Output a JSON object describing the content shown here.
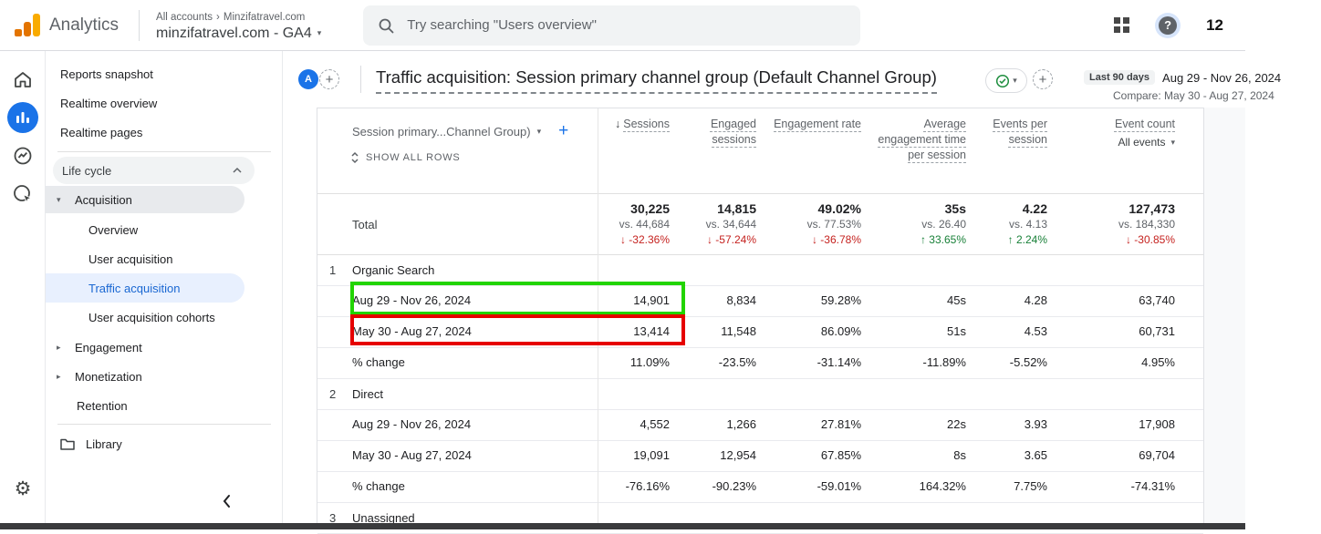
{
  "app_header": {
    "product_name": "Analytics",
    "breadcrumb": {
      "root": "All accounts",
      "separator": "›",
      "account": "Minzifatravel.com"
    },
    "property_selector": "minzifatravel.com - GA4",
    "search_placeholder": "Try searching \"Users overview\"",
    "help_glyph": "?",
    "counter": "12"
  },
  "sidebar": {
    "items": [
      {
        "type": "item",
        "label": "Reports snapshot"
      },
      {
        "type": "item",
        "label": "Realtime overview"
      },
      {
        "type": "item",
        "label": "Realtime pages"
      },
      {
        "type": "divider"
      },
      {
        "type": "section",
        "label": "Life cycle"
      },
      {
        "type": "parent",
        "label": "Acquisition",
        "state": "expanded"
      },
      {
        "type": "child",
        "label": "Overview"
      },
      {
        "type": "child",
        "label": "User acquisition"
      },
      {
        "type": "child",
        "label": "Traffic acquisition",
        "selected": true
      },
      {
        "type": "child",
        "label": "User acquisition cohorts"
      },
      {
        "type": "parent",
        "label": "Engagement",
        "state": "collapsed"
      },
      {
        "type": "parent",
        "label": "Monetization",
        "state": "collapsed"
      },
      {
        "type": "parent",
        "label": "Retention",
        "state": "none"
      },
      {
        "type": "divider"
      },
      {
        "type": "library",
        "label": "Library"
      }
    ]
  },
  "report_header": {
    "avatar_letter": "A",
    "title": "Traffic acquisition: Session primary channel group (Default Channel Group)",
    "date_badge": "Last 90 days",
    "date_range": "Aug 29 - Nov 26, 2024",
    "compare_range": "Compare: May 30 - Aug 27, 2024"
  },
  "table": {
    "dimension_header": "Session primary...Channel Group)",
    "add_dimension": "+",
    "show_all_rows": "SHOW ALL ROWS",
    "columns": [
      {
        "label": "Sessions",
        "sorted": true
      },
      {
        "label": "Engaged sessions"
      },
      {
        "label": "Engagement rate"
      },
      {
        "label": "Average engagement time per session"
      },
      {
        "label": "Events per session"
      },
      {
        "label": "Event count",
        "filter": "All events"
      }
    ],
    "total": {
      "label": "Total",
      "metrics": [
        {
          "value": "30,225",
          "vs": "vs. 44,684",
          "change": "-32.36%",
          "dir": "down"
        },
        {
          "value": "14,815",
          "vs": "vs. 34,644",
          "change": "-57.24%",
          "dir": "down"
        },
        {
          "value": "49.02%",
          "vs": "vs. 77.53%",
          "change": "-36.78%",
          "dir": "down"
        },
        {
          "value": "35s",
          "vs": "vs. 26.40",
          "change": "33.65%",
          "dir": "up"
        },
        {
          "value": "4.22",
          "vs": "vs. 4.13",
          "change": "2.24%",
          "dir": "up"
        },
        {
          "value": "127,473",
          "vs": "vs. 184,330",
          "change": "-30.85%",
          "dir": "down"
        }
      ]
    },
    "groups": [
      {
        "index": "1",
        "channel": "Organic Search",
        "rows": [
          {
            "label": "Aug 29 - Nov 26, 2024",
            "values": [
              "14,901",
              "8,834",
              "59.28%",
              "45s",
              "4.28",
              "63,740"
            ]
          },
          {
            "label": "May 30 - Aug 27, 2024",
            "values": [
              "13,414",
              "11,548",
              "86.09%",
              "51s",
              "4.53",
              "60,731"
            ]
          },
          {
            "label": "% change",
            "values": [
              "11.09%",
              "-23.5%",
              "-31.14%",
              "-11.89%",
              "-5.52%",
              "4.95%"
            ]
          }
        ]
      },
      {
        "index": "2",
        "channel": "Direct",
        "rows": [
          {
            "label": "Aug 29 - Nov 26, 2024",
            "values": [
              "4,552",
              "1,266",
              "27.81%",
              "22s",
              "3.93",
              "17,908"
            ]
          },
          {
            "label": "May 30 - Aug 27, 2024",
            "values": [
              "19,091",
              "12,954",
              "67.85%",
              "8s",
              "3.65",
              "69,704"
            ]
          },
          {
            "label": "% change",
            "values": [
              "-76.16%",
              "-90.23%",
              "-59.01%",
              "164.32%",
              "7.75%",
              "-74.31%"
            ]
          }
        ]
      },
      {
        "index": "3",
        "channel": "Unassigned",
        "rows": []
      }
    ]
  },
  "annotations": [
    {
      "target": "Organic Search current period row",
      "color": "#22d400"
    },
    {
      "target": "Organic Search compare period row",
      "color": "#e60000"
    }
  ],
  "icons": {
    "plus": "+",
    "caret_down": "▾",
    "caret_right": "▸",
    "sort_desc": "↓",
    "arrow_down": "↓",
    "arrow_up": "↑",
    "gear": "⚙"
  },
  "colors": {
    "accent_blue": "#1a73e8",
    "selected_link_blue": "#1967d2",
    "negative_red": "#c5221f",
    "positive_green": "#188038",
    "annotation_green": "#22d400",
    "annotation_red": "#e60000"
  }
}
